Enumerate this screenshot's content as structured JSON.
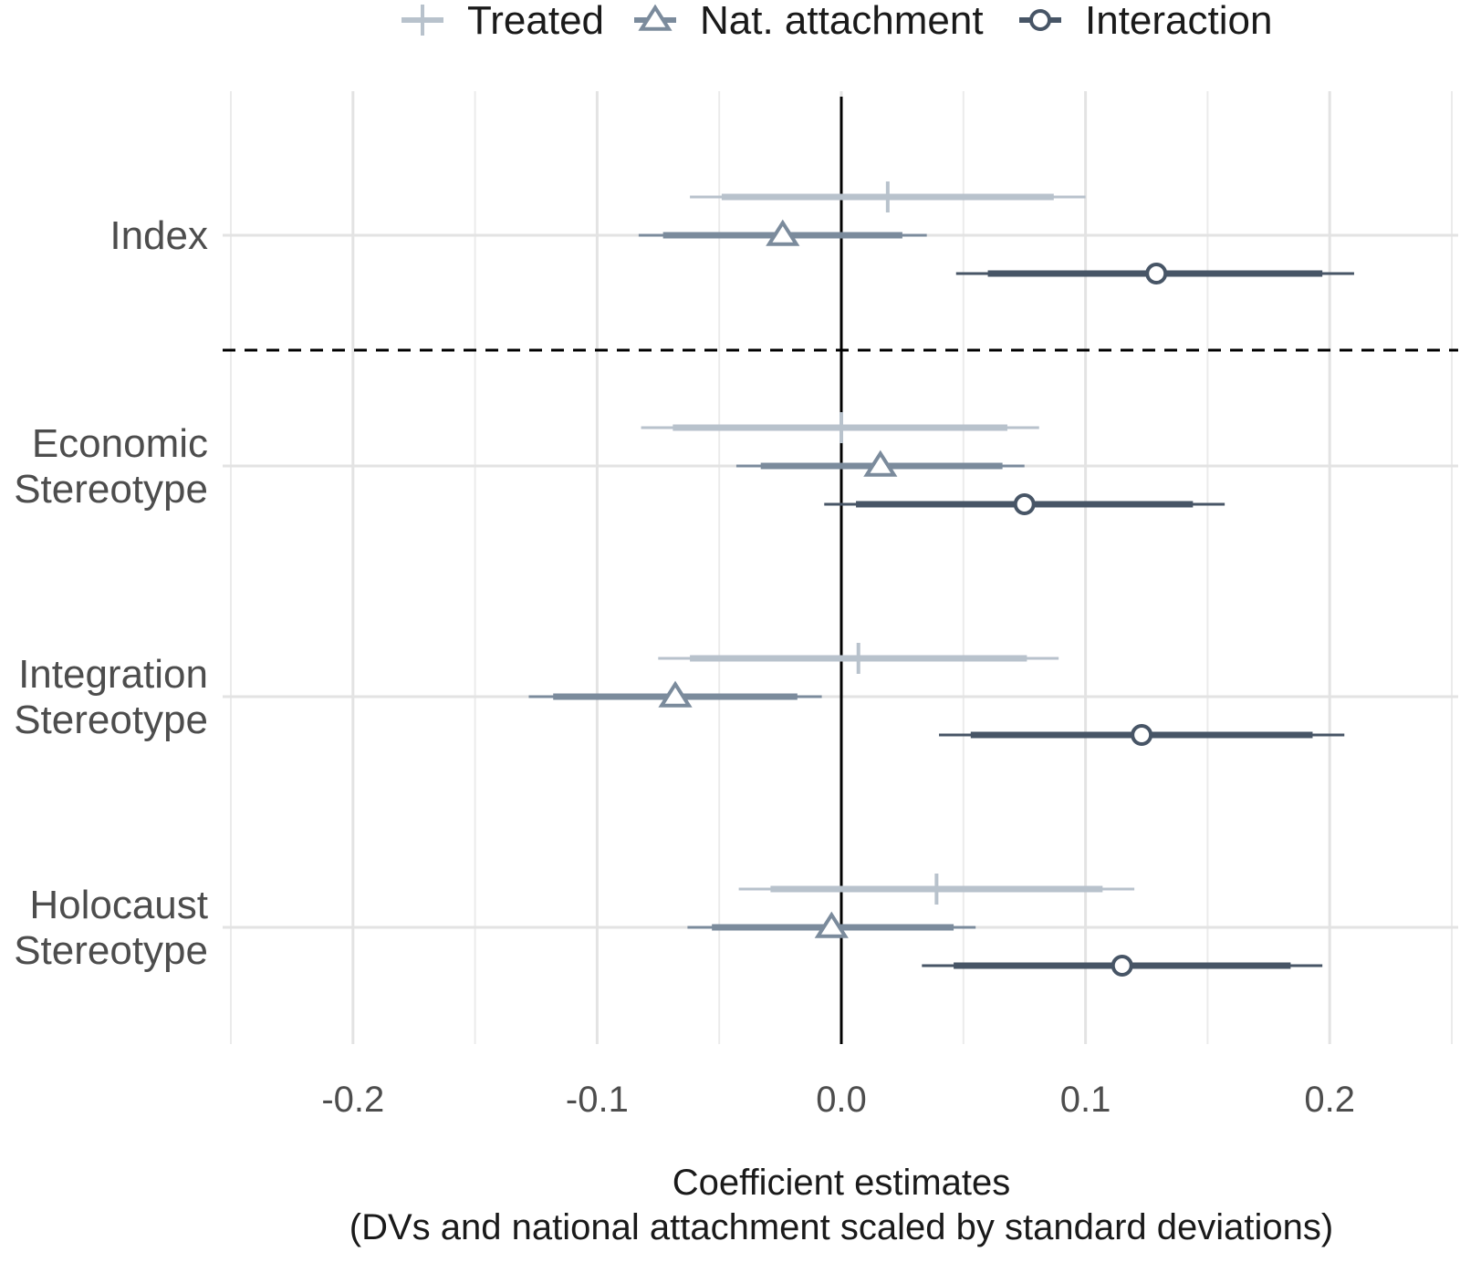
{
  "chart_data": {
    "type": "coefficient-plot",
    "xlabel": [
      "Coefficient estimates",
      "(DVs and national attachment scaled by standard deviations)"
    ],
    "xlim": [
      -0.25,
      0.25
    ],
    "xticks": [
      -0.2,
      -0.1,
      0.0,
      0.1,
      0.2
    ],
    "xtick_labels": [
      "-0.2",
      "-0.1",
      "0.0",
      "0.1",
      "0.2"
    ],
    "grid": true,
    "reference_line": 0,
    "legend_position": "top",
    "categories": [
      {
        "lines": [
          "Index"
        ],
        "separator_below": true
      },
      {
        "lines": [
          "Economic",
          "Stereotype"
        ],
        "separator_below": false
      },
      {
        "lines": [
          "Integration",
          "Stereotype"
        ],
        "separator_below": false
      },
      {
        "lines": [
          "Holocaust",
          "Stereotype"
        ],
        "separator_below": false
      }
    ],
    "series": [
      {
        "name": "Treated",
        "marker": "plus",
        "color": "#b8c2cc",
        "estimates": [
          0.019,
          0.0,
          0.007,
          0.039
        ],
        "ci90": [
          [
            -0.049,
            0.087
          ],
          [
            -0.069,
            0.068
          ],
          [
            -0.062,
            0.076
          ],
          [
            -0.029,
            0.107
          ]
        ],
        "ci95": [
          [
            -0.062,
            0.1
          ],
          [
            -0.082,
            0.081
          ],
          [
            -0.075,
            0.089
          ],
          [
            -0.042,
            0.12
          ]
        ]
      },
      {
        "name": "Nat. attachment",
        "marker": "triangle",
        "color": "#7b8b9c",
        "estimates": [
          -0.024,
          0.016,
          -0.068,
          -0.004
        ],
        "ci90": [
          [
            -0.073,
            0.025
          ],
          [
            -0.033,
            0.066
          ],
          [
            -0.118,
            -0.018
          ],
          [
            -0.053,
            0.046
          ]
        ],
        "ci95": [
          [
            -0.083,
            0.035
          ],
          [
            -0.043,
            0.075
          ],
          [
            -0.128,
            -0.008
          ],
          [
            -0.063,
            0.055
          ]
        ]
      },
      {
        "name": "Interaction",
        "marker": "circle",
        "color": "#475566",
        "estimates": [
          0.129,
          0.075,
          0.123,
          0.115
        ],
        "ci90": [
          [
            0.06,
            0.197
          ],
          [
            0.006,
            0.144
          ],
          [
            0.053,
            0.193
          ],
          [
            0.046,
            0.184
          ]
        ],
        "ci95": [
          [
            0.047,
            0.21
          ],
          [
            -0.007,
            0.157
          ],
          [
            0.04,
            0.206
          ],
          [
            0.033,
            0.197
          ]
        ]
      }
    ]
  }
}
